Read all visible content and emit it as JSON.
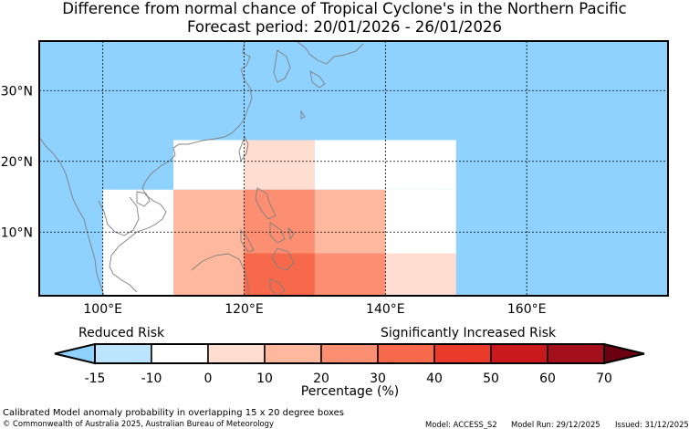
{
  "title": {
    "line1": "Difference from normal chance of Tropical Cyclone's in the Northern Pacific",
    "line2": "Forecast period: 20/01/2026 - 26/01/2026"
  },
  "map": {
    "lon_range": [
      91,
      180
    ],
    "lat_range": [
      1,
      37
    ],
    "lon_ticks": [
      {
        "value": 100,
        "label": "100°E"
      },
      {
        "value": 120,
        "label": "120°E"
      },
      {
        "value": 140,
        "label": "140°E"
      },
      {
        "value": 160,
        "label": "160°E"
      }
    ],
    "lat_ticks": [
      {
        "value": 30,
        "label": "30°N"
      },
      {
        "value": 20,
        "label": "20°N"
      },
      {
        "value": 10,
        "label": "10°N"
      }
    ],
    "background_color": "#8fd1ff",
    "cells": [
      {
        "lon": [
          100,
          110
        ],
        "lat": [
          1,
          16
        ],
        "value": -7
      },
      {
        "lon": [
          110,
          120
        ],
        "lat": [
          16,
          23
        ],
        "value": -2
      },
      {
        "lon": [
          110,
          120
        ],
        "lat": [
          1,
          16
        ],
        "value": 15
      },
      {
        "lon": [
          120,
          130
        ],
        "lat": [
          16,
          23
        ],
        "value": 5
      },
      {
        "lon": [
          120,
          130
        ],
        "lat": [
          7,
          16
        ],
        "value": 25
      },
      {
        "lon": [
          120,
          130
        ],
        "lat": [
          1,
          7
        ],
        "value": 35
      },
      {
        "lon": [
          130,
          140
        ],
        "lat": [
          16,
          23
        ],
        "value": -2
      },
      {
        "lon": [
          130,
          140
        ],
        "lat": [
          7,
          16
        ],
        "value": 15
      },
      {
        "lon": [
          130,
          140
        ],
        "lat": [
          1,
          7
        ],
        "value": 25
      },
      {
        "lon": [
          140,
          150
        ],
        "lat": [
          16,
          23
        ],
        "value": -8
      },
      {
        "lon": [
          140,
          150
        ],
        "lat": [
          7,
          16
        ],
        "value": -2
      },
      {
        "lon": [
          140,
          150
        ],
        "lat": [
          1,
          7
        ],
        "value": 5
      }
    ]
  },
  "colorbar": {
    "left_label": "Reduced Risk",
    "right_label": "Significantly Increased Risk",
    "label": "Percentage (%)",
    "ticks": [
      "-15",
      "-10",
      "0",
      "10",
      "20",
      "30",
      "40",
      "50",
      "60",
      "70"
    ],
    "under_color": "#8fd1ff",
    "over_color": "#6b0010",
    "colors": [
      "#bde4ff",
      "#ffffff",
      "#ffddd1",
      "#fdb89d",
      "#fc8f72",
      "#f6694b",
      "#ea3a2c",
      "#c9191d",
      "#a3101b"
    ]
  },
  "footer": {
    "description": "Calibrated Model anomaly probability in overlapping 15 x 20 degree boxes",
    "copyright": "© Commonwealth of Australia 2025, Australian Bureau of Meteorology",
    "model": "Model: ACCESS_S2",
    "model_run": "Model Run: 29/12/2025",
    "issued": "Issued: 31/12/2025"
  }
}
